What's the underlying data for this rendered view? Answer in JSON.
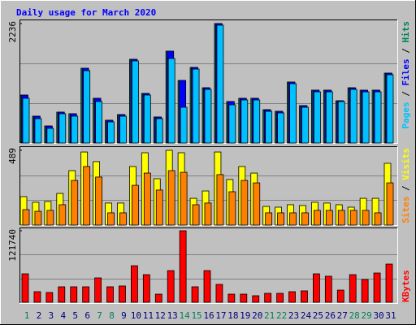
{
  "chart_data": [
    {
      "type": "bar",
      "title": "Daily usage for March 2020",
      "series": [
        {
          "name": "Hits",
          "color": "#00805c",
          "values": [
            897,
            502,
            319,
            578,
            548,
            1399,
            837,
            426,
            532,
            1567,
            928,
            487,
            1719,
            1171,
            1415,
            1034,
            2236,
            776,
            837,
            837,
            624,
            593,
            1141,
            700,
            989,
            989,
            791,
            1034,
            989,
            989,
            1308
          ]
        },
        {
          "name": "Files",
          "color": "#0000ff",
          "values": [
            897,
            502,
            319,
            578,
            548,
            1399,
            837,
            426,
            532,
            1567,
            928,
            487,
            1719,
            1171,
            1415,
            1034,
            2236,
            776,
            837,
            837,
            624,
            593,
            1141,
            700,
            989,
            989,
            791,
            1034,
            989,
            989,
            1308
          ]
        },
        {
          "name": "Pages",
          "color": "#00c0ff",
          "values": [
            837,
            456,
            274,
            548,
            502,
            1354,
            776,
            395,
            502,
            1537,
            898,
            456,
            1582,
            669,
            1384,
            1004,
            2206,
            715,
            806,
            806,
            593,
            563,
            1110,
            669,
            958,
            958,
            776,
            1004,
            958,
            958,
            1278
          ]
        }
      ],
      "ylim": [
        0,
        2236
      ],
      "yticks": [
        2236
      ]
    },
    {
      "type": "bar",
      "series": [
        {
          "name": "Visits",
          "color": "#ffff00",
          "values": [
            186,
            149,
            154,
            207,
            356,
            478,
            415,
            144,
            144,
            383,
            473,
            303,
            489,
            473,
            175,
            223,
            478,
            298,
            383,
            340,
            122,
            117,
            133,
            128,
            149,
            144,
            133,
            117,
            175,
            175,
            404
          ]
        },
        {
          "name": "Sites",
          "color": "#ff8000",
          "values": [
            101,
            90,
            96,
            133,
            292,
            383,
            314,
            80,
            80,
            260,
            340,
            229,
            356,
            345,
            133,
            144,
            330,
            218,
            292,
            276,
            80,
            80,
            80,
            80,
            96,
            96,
            96,
            96,
            96,
            80,
            276
          ]
        }
      ],
      "ylim": [
        0,
        489
      ],
      "yticks": [
        489
      ]
    },
    {
      "type": "bar",
      "categories": [
        "1",
        "2",
        "3",
        "4",
        "5",
        "6",
        "7",
        "8",
        "9",
        "10",
        "11",
        "12",
        "13",
        "14",
        "15",
        "16",
        "17",
        "18",
        "19",
        "20",
        "21",
        "22",
        "23",
        "24",
        "25",
        "26",
        "27",
        "28",
        "29",
        "30",
        "31"
      ],
      "category_colors": [
        "#00805c",
        "#000080",
        "#000080",
        "#000080",
        "#000080",
        "#000080",
        "#00805c",
        "#00805c",
        "#000080",
        "#000080",
        "#000080",
        "#000080",
        "#000080",
        "#00805c",
        "#00805c",
        "#000080",
        "#000080",
        "#000080",
        "#000080",
        "#000080",
        "#00805c",
        "#00805c",
        "#000080",
        "#000080",
        "#000080",
        "#000080",
        "#000080",
        "#00805c",
        "#00805c",
        "#000080",
        "#000080"
      ],
      "series": [
        {
          "name": "KBytes",
          "color": "#ff0000",
          "values": [
            48400,
            18000,
            16600,
            26300,
            26300,
            26300,
            41500,
            26300,
            27700,
            62200,
            47000,
            13800,
            53900,
            121740,
            26300,
            53900,
            30400,
            13800,
            13800,
            11100,
            15200,
            15200,
            18000,
            19400,
            48400,
            44300,
            20700,
            47000,
            38700,
            49800,
            65000
          ]
        }
      ],
      "ylim": [
        0,
        121740
      ],
      "yticks": [
        121740
      ]
    }
  ]
}
